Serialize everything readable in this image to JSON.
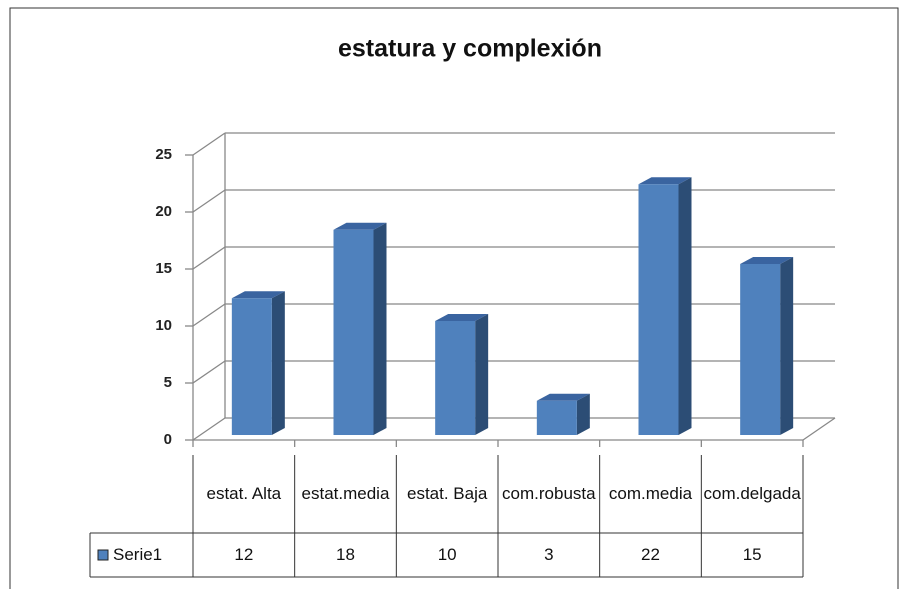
{
  "chart_data": {
    "type": "bar3d",
    "title": "estatura y complexión",
    "categories": [
      "estat. Alta",
      "estat.media",
      "estat. Baja",
      "com.robusta",
      "com.media",
      "com.delgada"
    ],
    "series": [
      {
        "name": "Serie1",
        "color": "#4f81bd",
        "values": [
          12,
          18,
          10,
          3,
          22,
          15
        ]
      }
    ],
    "ylim": [
      0,
      25
    ],
    "yticks": [
      0,
      5,
      10,
      15,
      20,
      25
    ],
    "grid": true,
    "data_table": true
  }
}
